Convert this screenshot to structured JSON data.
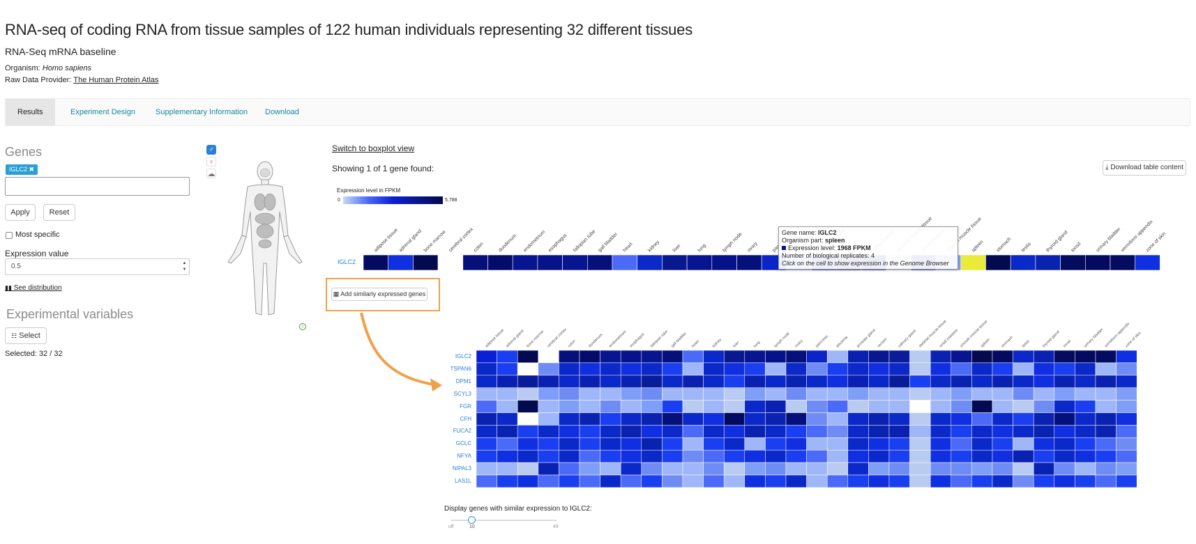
{
  "header": {
    "title": "RNA-seq of coding RNA from tissue samples of 122 human individuals representing 32 different tissues",
    "subtitle": "RNA-Seq mRNA baseline",
    "organism_label": "Organism:",
    "organism_value": "Homo sapiens",
    "provider_label": "Raw Data Provider:",
    "provider_value": "The Human Protein Atlas"
  },
  "tabs": [
    "Results",
    "Experiment Design",
    "Supplementary Information",
    "Download"
  ],
  "sidebar": {
    "genes_title": "Genes",
    "gene_tag": "IGLC2 ✖",
    "gene_input_value": "",
    "apply_label": "Apply",
    "reset_label": "Reset",
    "most_specific_label": "Most specific",
    "expression_value_label": "Expression value",
    "expression_value": "0.5",
    "see_distribution_label": "See distribution",
    "experimental_variables_title": "Experimental variables",
    "select_label": "Select",
    "selected_count": "Selected: 32 / 32"
  },
  "main": {
    "switch_label": "Switch to boxplot view",
    "showing_label": "Showing 1 of 1 gene found:",
    "download_label": "Download table content",
    "legend_title": "Expression level in FPKM",
    "legend_min": "0",
    "legend_max": "5,788",
    "add_similar_label": "Add similarly expressed genes",
    "slider_label": "Display genes with similar expression to IGLC2:",
    "slider_min": "off",
    "slider_value": 10,
    "slider_max": "49"
  },
  "tooltip": {
    "gene_label": "Gene name:",
    "gene_value": "IGLC2",
    "part_label": "Organism part:",
    "part_value": "spleen",
    "level_label": "Expression level:",
    "level_value": "1968 FPKM",
    "reps_label": "Number of biological replicates:",
    "reps_value": "4",
    "hint": "Click on the cell to show expression in the Genome Browser"
  },
  "chart_data": {
    "type": "heatmap",
    "tissues": [
      "adipose tissue",
      "adrenal gland",
      "bone marrow",
      "cerebral cortex",
      "colon",
      "duodenum",
      "endometrium",
      "esophagus",
      "fallopian tube",
      "gall bladder",
      "heart",
      "kidney",
      "liver",
      "lung",
      "lymph node",
      "ovary",
      "pancreas",
      "placenta",
      "prostate gland",
      "rectum",
      "salivary gland",
      "skeletal muscle tissue",
      "small intestine",
      "smooth muscle tissue",
      "spleen",
      "stomach",
      "testis",
      "thyroid gland",
      "tonsil",
      "urinary bladder",
      "vermiform appendix",
      "zone of skin"
    ],
    "main_gene": "IGLC2",
    "main_row_colors": [
      "#030a60",
      "#0f2fe0",
      "#030a50",
      "#ffffff",
      "#05107a",
      "#040c6a",
      "#071590",
      "#06138a",
      "#071590",
      "#05107a",
      "#4a6af7",
      "#0b28c8",
      "#08188f",
      "#071590",
      "#06128a",
      "#05107a",
      "#0a24c8",
      "#7f9ef8",
      "#0a20b0",
      "#08188f",
      "#091c9a",
      "#c6d4f2",
      "#0a22b0",
      "#7f9ef8",
      "#eaea3a",
      "#030a50",
      "#0b28c8",
      "#0a22b0",
      "#040c60",
      "#030a60",
      "#040c60",
      "#0f2fe0"
    ],
    "genes": [
      "IGLC2",
      "TSPAN6",
      "DPM1",
      "SCYL3",
      "FGR",
      "CFH",
      "FUCA2",
      "GCLC",
      "NFYA",
      "NIPAL3",
      "LAS1L"
    ],
    "row_colors": [
      [
        "#0b1fd5",
        "#1a3ff0",
        "#030a50",
        "#ffffff",
        "#05107a",
        "#040c6a",
        "#071590",
        "#06138a",
        "#071590",
        "#05107a",
        "#4a6af7",
        "#0b28c8",
        "#08188f",
        "#071590",
        "#06128a",
        "#05107a",
        "#0a24c8",
        "#9fb7f8",
        "#0a20b0",
        "#08188f",
        "#091c9a",
        "#b9cbf0",
        "#0a22b0",
        "#071590",
        "#030a50",
        "#030a60",
        "#0b28c8",
        "#0a22b0",
        "#040c60",
        "#030a60",
        "#040c60",
        "#0f2fe0"
      ],
      [
        "#0b28c8",
        "#1a3ff0",
        "#ffffff",
        "#6f8cf5",
        "#0b28c8",
        "#0f2fe0",
        "#0b28c8",
        "#0f2fe0",
        "#0b28c8",
        "#1a3ff0",
        "#9fb7f8",
        "#0b28c8",
        "#0f2fe0",
        "#1a3ff0",
        "#9fb7f8",
        "#0b28c8",
        "#6f8cf5",
        "#1a3ff0",
        "#0b28c8",
        "#0f2fe0",
        "#0b28c8",
        "#b9cbf0",
        "#0f2fe0",
        "#4a6af7",
        "#0b28c8",
        "#1a3ff0",
        "#9fb7f8",
        "#0f2fe0",
        "#1a3ff0",
        "#0b28c8",
        "#9fb7f8",
        "#6f8cf5"
      ],
      [
        "#0b28c8",
        "#0a20b0",
        "#091c9a",
        "#0a20b0",
        "#0b28c8",
        "#0a20b0",
        "#0b28c8",
        "#0a22b0",
        "#091c9a",
        "#0b28c8",
        "#0a20b0",
        "#0b28c8",
        "#1a3ff0",
        "#0a20b0",
        "#0b28c8",
        "#0a22b0",
        "#0b28c8",
        "#0f2fe0",
        "#0a20b0",
        "#0b28c8",
        "#091c9a",
        "#1a3ff0",
        "#0b28c8",
        "#0a22b0",
        "#0b28c8",
        "#0a20b0",
        "#0b28c8",
        "#0f2fe0",
        "#0a22b0",
        "#0b28c8",
        "#0a20b0",
        "#0b28c8"
      ],
      [
        "#9fb7f8",
        "#9fb7f8",
        "#b9cbf0",
        "#7f9ef8",
        "#6f8cf5",
        "#9fb7f8",
        "#9fb7f8",
        "#7f9ef8",
        "#6f8cf5",
        "#9fb7f8",
        "#9fb7f8",
        "#9fb7f8",
        "#b9cbf0",
        "#7f9ef8",
        "#9fb7f8",
        "#6f8cf5",
        "#9fb7f8",
        "#9fb7f8",
        "#7f9ef8",
        "#9fb7f8",
        "#9fb7f8",
        "#b9cbf0",
        "#9fb7f8",
        "#7f9ef8",
        "#9fb7f8",
        "#9fb7f8",
        "#6f8cf5",
        "#9fb7f8",
        "#7f9ef8",
        "#9fb7f8",
        "#9fb7f8",
        "#7f9ef8"
      ],
      [
        "#4a6af7",
        "#9fb7f8",
        "#030a50",
        "#9fb7f8",
        "#7f9ef8",
        "#9fb7f8",
        "#6f8cf5",
        "#9fb7f8",
        "#7f9ef8",
        "#1a3ff0",
        "#b9cbf0",
        "#9fb7f8",
        "#b9cbf0",
        "#0b28c8",
        "#0a20b0",
        "#b9cbf0",
        "#6f8cf5",
        "#4a6af7",
        "#b9cbf0",
        "#9fb7f8",
        "#9fb7f8",
        "#ffffff",
        "#9fb7f8",
        "#6f8cf5",
        "#030a50",
        "#9fb7f8",
        "#b9cbf0",
        "#6f8cf5",
        "#0b28c8",
        "#1a3ff0",
        "#9fb7f8",
        "#7f9ef8"
      ],
      [
        "#0a22b0",
        "#0b28c8",
        "#ffffff",
        "#9fb7f8",
        "#0b28c8",
        "#0a22b0",
        "#1a3ff0",
        "#0b28c8",
        "#0a22b0",
        "#05107a",
        "#0b28c8",
        "#0f2fe0",
        "#030a60",
        "#0b28c8",
        "#0a22b0",
        "#05107a",
        "#6f8cf5",
        "#9fb7f8",
        "#0b28c8",
        "#0a22b0",
        "#0b28c8",
        "#b9cbf0",
        "#0b28c8",
        "#0f2fe0",
        "#4a6af7",
        "#0b28c8",
        "#1a3ff0",
        "#0a22b0",
        "#05107a",
        "#0b28c8",
        "#0a22b0",
        "#0f2fe0"
      ],
      [
        "#0b28c8",
        "#0a22b0",
        "#1a3ff0",
        "#0b28c8",
        "#0f2fe0",
        "#1a3ff0",
        "#0b28c8",
        "#0a22b0",
        "#0f2fe0",
        "#0b28c8",
        "#4a6af7",
        "#0b28c8",
        "#0f2fe0",
        "#0a22b0",
        "#0b28c8",
        "#1a3ff0",
        "#4a6af7",
        "#6f8cf5",
        "#0b28c8",
        "#0a22b0",
        "#0a20b0",
        "#9fb7f8",
        "#0b28c8",
        "#1a3ff0",
        "#0b28c8",
        "#0f2fe0",
        "#0b28c8",
        "#0a22b0",
        "#0f2fe0",
        "#0b28c8",
        "#0a22b0",
        "#4a6af7"
      ],
      [
        "#1a3ff0",
        "#4a6af7",
        "#0f2fe0",
        "#1a3ff0",
        "#0b28c8",
        "#1a3ff0",
        "#0b28c8",
        "#0f2fe0",
        "#0a22b0",
        "#1a3ff0",
        "#9fb7f8",
        "#1a3ff0",
        "#0b28c8",
        "#9fb7f8",
        "#1a3ff0",
        "#0f2fe0",
        "#9fb7f8",
        "#9fb7f8",
        "#0b28c8",
        "#0f2fe0",
        "#1a3ff0",
        "#b9cbf0",
        "#0f2fe0",
        "#4a6af7",
        "#0b28c8",
        "#1a3ff0",
        "#9fb7f8",
        "#0f2fe0",
        "#0b28c8",
        "#1a3ff0",
        "#4a6af7",
        "#6f8cf5"
      ],
      [
        "#1a3ff0",
        "#0f2fe0",
        "#0b28c8",
        "#1a3ff0",
        "#0b28c8",
        "#4a6af7",
        "#1a3ff0",
        "#0f2fe0",
        "#0b28c8",
        "#1a3ff0",
        "#6f8cf5",
        "#4a6af7",
        "#1a3ff0",
        "#0f2fe0",
        "#0b28c8",
        "#1a3ff0",
        "#4a6af7",
        "#9fb7f8",
        "#0f2fe0",
        "#0b28c8",
        "#1a3ff0",
        "#b9cbf0",
        "#0f2fe0",
        "#1a3ff0",
        "#0b28c8",
        "#0f2fe0",
        "#0a20b0",
        "#1a3ff0",
        "#0b28c8",
        "#0f2fe0",
        "#1a3ff0",
        "#4a6af7"
      ],
      [
        "#9fb7f8",
        "#9fb7f8",
        "#b9cbf0",
        "#0a22b0",
        "#4a6af7",
        "#7f9ef8",
        "#9fb7f8",
        "#0b28c8",
        "#6f8cf5",
        "#9fb7f8",
        "#9fb7f8",
        "#6f8cf5",
        "#b9cbf0",
        "#7f9ef8",
        "#6f8cf5",
        "#9fb7f8",
        "#9fb7f8",
        "#b9cbf0",
        "#0b28c8",
        "#7f9ef8",
        "#6f8cf5",
        "#b9cbf0",
        "#6f8cf5",
        "#6f8cf5",
        "#7f9ef8",
        "#6f8cf5",
        "#b9cbf0",
        "#0a22b0",
        "#6f8cf5",
        "#9fb7f8",
        "#6f8cf5",
        "#7f9ef8"
      ],
      [
        "#4a6af7",
        "#1a3ff0",
        "#0f2fe0",
        "#4a6af7",
        "#1a3ff0",
        "#4a6af7",
        "#0b28c8",
        "#4a6af7",
        "#1a3ff0",
        "#6f8cf5",
        "#9fb7f8",
        "#4a6af7",
        "#9fb7f8",
        "#0f2fe0",
        "#1a3ff0",
        "#0b28c8",
        "#9fb7f8",
        "#4a6af7",
        "#1a3ff0",
        "#0f2fe0",
        "#1a3ff0",
        "#b9cbf0",
        "#0f2fe0",
        "#4a6af7",
        "#1a3ff0",
        "#0b28c8",
        "#6f8cf5",
        "#1a3ff0",
        "#0f2fe0",
        "#1a3ff0",
        "#4a6af7",
        "#1a3ff0"
      ]
    ]
  }
}
